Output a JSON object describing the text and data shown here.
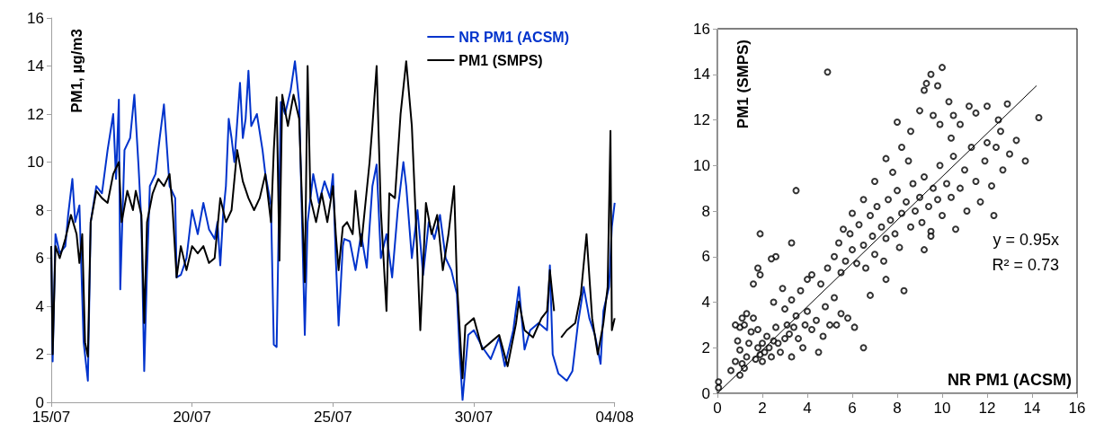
{
  "chart_data": [
    {
      "type": "line",
      "ylabel": "PM1, µg/m3",
      "xlim": [
        "--07-15",
        "--08-04"
      ],
      "xticks": [
        {
          "value": "--07-15",
          "label": "15/07"
        },
        {
          "value": "--07-20",
          "label": "20/07"
        },
        {
          "value": "--07-25",
          "label": "25/07"
        },
        {
          "value": "--07-30",
          "label": "30/07"
        },
        {
          "value": "--08-04",
          "label": "04/08"
        }
      ],
      "ylim": [
        0,
        16
      ],
      "yticks": [
        0,
        2,
        4,
        6,
        8,
        10,
        12,
        14,
        16
      ],
      "grid": false,
      "legend": "top right",
      "marker": "none",
      "line_style": "solid",
      "series": [
        {
          "name": "NR PM1 (ACSM)",
          "color": "#0033cc",
          "x": [
            "--07-15T00:00",
            "--07-15T01:12",
            "--07-15T03:36",
            "--07-15T07:12",
            "--07-15T12:00",
            "--07-15T14:24",
            "--07-15T18:00",
            "--07-15T20:24",
            "--07-16T00:00",
            "--07-16T03:36",
            "--07-16T07:12",
            "--07-16T09:36",
            "--07-16T14:24",
            "--07-16T19:12",
            "--07-17T00:00",
            "--07-17T04:48",
            "--07-17T07:12",
            "--07-17T09:36",
            "--07-17T10:48",
            "--07-17T14:24",
            "--07-17T19:12",
            "--07-17T22:48",
            "--07-18T02:24",
            "--07-18T04:48",
            "--07-18T07:12",
            "--07-18T09:36",
            "--07-18T12:00",
            "--07-18T16:48",
            "--07-18T20:24",
            "--07-19T00:00",
            "--07-19T04:48",
            "--07-19T09:36",
            "--07-19T10:48",
            "--07-19T14:24",
            "--07-19T19:12",
            "--07-20T00:00",
            "--07-20T04:48",
            "--07-20T09:36",
            "--07-20T14:24",
            "--07-20T19:12",
            "--07-20T21:36",
            "--07-21T00:00",
            "--07-21T02:24",
            "--07-21T04:48",
            "--07-21T07:12",
            "--07-21T09:36",
            "--07-21T12:00",
            "--07-21T16:48",
            "--07-21T19:12",
            "--07-21T21:36",
            "--07-22T00:00",
            "--07-22T02:24",
            "--07-22T07:12",
            "--07-22T12:00",
            "--07-22T14:24",
            "--07-22T19:12",
            "--07-22T21:36",
            "--07-23T00:00",
            "--07-23T03:36",
            "--07-23T07:12",
            "--07-23T12:00",
            "--07-23T15:36",
            "--07-23T19:12",
            "--07-24T00:00",
            "--07-24T02:24",
            "--07-24T07:12",
            "--07-24T12:00",
            "--07-24T16:48",
            "--07-24T21:36",
            "--07-25T00:00",
            "--07-25T02:24",
            "--07-25T04:48",
            "--07-25T08:24",
            "--07-25T09:36",
            "--07-25T14:24",
            "--07-25T19:12",
            "--07-26T00:00",
            "--07-26T04:48",
            "--07-26T09:36",
            "--07-26T13:12",
            "--07-26T16:48",
            "--07-26T21:36",
            "--07-27T02:24",
            "--07-27T07:12",
            "--07-27T12:00",
            "--07-27T14:24",
            "--07-27T19:12",
            "--07-28T00:00",
            "--07-28T04:48",
            "--07-28T09:36",
            "--07-28T14:24",
            "--07-28T19:12",
            "--07-29T00:00",
            "--07-29T04:48",
            "--07-29T09:36",
            "--07-29T12:00",
            "--07-29T14:24",
            "--07-29T19:12",
            "--07-30T00:00",
            "--07-30T07:12",
            "--07-30T14:24",
            "--07-30T21:36",
            "--07-31T02:24",
            "--07-31T09:36",
            "--07-31T14:24",
            "--07-31T19:12",
            "--08-01T00:00",
            "--08-01T07:12",
            "--08-01T14:24",
            "--08-01T16:48",
            "--08-01T19:12",
            "--08-02T00:00",
            "--08-02T07:12",
            "--08-02T12:00",
            "--08-02T16:48",
            "--08-02T21:36",
            "--08-03T02:24",
            "--08-03T07:12",
            "--08-03T12:00",
            "--08-03T14:24",
            "--08-03T19:12",
            "--08-03T21:36",
            "--08-04T00:00"
          ],
          "values": [
            6.5,
            1.7,
            7,
            6.2,
            6.5,
            7.8,
            9.3,
            7.5,
            8.2,
            2.5,
            0.9,
            7.5,
            9,
            8.7,
            10.5,
            12,
            9.3,
            12.6,
            4.7,
            10.5,
            11,
            12.8,
            9.8,
            7.5,
            1.3,
            5.5,
            9,
            9.5,
            11,
            12.4,
            9,
            8.5,
            5.2,
            5.3,
            6,
            8,
            7,
            8.3,
            7.2,
            6.8,
            7.5,
            5.7,
            7.8,
            9,
            11.8,
            11,
            10,
            13.3,
            11,
            11.8,
            13.8,
            11.5,
            12,
            10.5,
            9.5,
            8.2,
            2.4,
            2.3,
            12.5,
            12,
            13,
            14.2,
            12.5,
            2.8,
            7.5,
            9.5,
            8.3,
            9.2,
            8.5,
            9.5,
            6,
            3.2,
            6.5,
            6.8,
            6.7,
            5.5,
            7,
            5.6,
            9,
            9.9,
            6,
            7,
            5.2,
            8,
            10,
            9,
            6,
            8,
            5.3,
            7.5,
            6.8,
            7.8,
            6,
            5.5,
            4.5,
            2,
            0.1,
            2.8,
            3,
            2.3,
            1.8,
            2.7,
            1.5,
            3,
            4.8,
            2.2,
            3,
            3.3,
            3,
            5.7,
            2,
            1.2,
            0.9,
            1.3,
            3.3,
            4.8,
            3.5,
            2.8,
            1.6,
            3.8,
            4.8,
            7.3,
            8.3
          ]
        },
        {
          "name": "PM1 (SMPS)",
          "color": "#000000",
          "x": [
            "--07-15T00:00",
            "--07-15T01:12",
            "--07-15T03:36",
            "--07-15T07:12",
            "--07-15T12:00",
            "--07-15T16:48",
            "--07-15T21:36",
            "--07-16T00:00",
            "--07-16T02:24",
            "--07-16T04:48",
            "--07-16T07:12",
            "--07-16T09:36",
            "--07-16T14:24",
            "--07-16T19:12",
            "--07-17T00:00",
            "--07-17T04:48",
            "--07-17T09:36",
            "--07-17T12:00",
            "--07-17T16:48",
            "--07-17T21:36",
            "--07-18T00:00",
            "--07-18T04:48",
            "--07-18T07:12",
            "--07-18T09:36",
            "--07-18T14:24",
            "--07-18T19:12",
            "--07-19T00:00",
            "--07-19T04:48",
            "--07-19T07:12",
            "--07-19T10:48",
            "--07-19T14:24",
            "--07-19T19:12",
            "--07-20T00:00",
            "--07-20T04:48",
            "--07-20T09:36",
            "--07-20T14:24",
            "--07-20T19:12",
            "--07-21T00:00",
            "--07-21T04:48",
            "--07-21T09:36",
            "--07-21T14:24",
            "--07-21T19:12",
            "--07-22T00:00",
            "--07-22T04:48",
            "--07-22T09:36",
            "--07-22T14:24",
            "--07-22T19:12",
            "--07-22T21:36",
            "--07-23T00:00",
            "--07-23T02:24",
            "--07-23T04:48",
            "--07-23T09:36",
            "--07-23T14:24",
            "--07-23T19:12",
            "--07-24T00:00",
            "--07-24T02:24",
            "--07-24T04:48",
            "--07-24T09:36",
            "--07-24T14:24",
            "--07-24T19:12",
            "--07-25T00:00",
            "--07-25T02:24",
            "--07-25T04:48",
            "--07-25T08:24",
            "--07-25T12:00",
            "--07-25T16:48",
            "--07-25T19:12",
            "--07-26T00:00",
            "--07-26T07:12",
            "--07-26T09:36",
            "--07-26T13:12",
            "--07-26T16:48",
            "--07-26T21:36",
            "--07-27T00:00",
            "--07-27T04:48",
            "--07-27T09:36",
            "--07-27T14:24",
            "--07-27T19:12",
            "--07-28T00:00",
            "--07-28T02:24",
            "--07-28T07:12",
            "--07-28T12:00",
            "--07-28T16:48",
            "--07-28T21:36",
            "--07-29T02:24",
            "--07-29T07:12",
            "--07-29T09:36",
            "--07-29T14:24",
            "--07-29T16:48",
            "--07-30T00:00",
            "--07-30T07:12",
            "--07-30T14:24",
            "--07-30T21:36",
            "--07-31T04:48",
            "--07-31T12:00",
            "--07-31T14:24",
            "--07-31T19:12",
            "--08-01T02:24",
            "--08-01T09:36",
            "--08-01T14:24",
            "--08-01T16:48",
            "--08-01T20:24",
            "--08-02T00:00",
            "--08-02T02:24",
            "--08-02T07:12",
            "--08-02T14:24",
            "--08-02T19:12",
            "--08-03T00:00",
            "--08-03T04:48",
            "--08-03T09:36",
            "--08-03T14:24",
            "--08-03T18:00",
            "--08-03T20:24",
            "--08-03T21:36",
            "--08-04T00:00"
          ],
          "values": [
            6.5,
            2,
            6.5,
            6,
            6.8,
            7.8,
            7,
            5.8,
            7,
            2.5,
            1.9,
            7.5,
            8.8,
            8.5,
            8.3,
            9.5,
            10,
            7.5,
            8.8,
            8,
            8.8,
            7.8,
            3.3,
            7.5,
            8.7,
            9.3,
            9,
            9.5,
            8.2,
            5.2,
            6.5,
            5.5,
            6.5,
            6.2,
            6.5,
            5.8,
            6,
            8.5,
            7.5,
            8,
            10.5,
            9.2,
            8.5,
            8,
            8.5,
            9.5,
            7.5,
            10.5,
            12.7,
            5.9,
            12.8,
            11.5,
            12.8,
            11.8,
            5,
            14,
            8.5,
            7.5,
            8.7,
            7.5,
            9,
            7,
            5.5,
            7.3,
            7.5,
            7,
            8.8,
            6.5,
            10,
            11.5,
            14,
            8,
            3.8,
            8.7,
            8.5,
            12,
            14.2,
            11.5,
            6,
            3,
            8.3,
            7,
            7.8,
            5.5,
            7,
            9,
            5,
            1,
            3.2,
            3.5,
            2.2,
            2.5,
            2.8,
            1.5,
            3.3,
            4.2,
            3,
            2.7,
            3.5,
            3.8,
            5.5,
            3.8,
            null,
            2.7,
            3,
            3.3,
            4.5,
            7,
            3.5,
            2,
            3.3,
            4.8,
            11.3,
            3,
            3.5
          ]
        }
      ]
    },
    {
      "type": "scatter",
      "xlabel": "NR PM1 (ACSM)",
      "ylabel": "PM1 (SMPS)",
      "xlim": [
        0,
        16
      ],
      "xticks": [
        0,
        2,
        4,
        6,
        8,
        10,
        12,
        14,
        16
      ],
      "ylim": [
        0,
        16
      ],
      "yticks": [
        0,
        2,
        4,
        6,
        8,
        10,
        12,
        14,
        16
      ],
      "grid": false,
      "legend": false,
      "annotations": [
        "y = 0.95x",
        "R² = 0.73"
      ],
      "series": [
        {
          "color": "#000000",
          "marker": "circle",
          "x": [
            0.05,
            0.05,
            0.8,
            0.6,
            1.0,
            1.1,
            1.2,
            1.3,
            1.0,
            0.9,
            1.0,
            0.8,
            1.1,
            1.2,
            1.3,
            1.5,
            1.6,
            1.8,
            1.4,
            1.7,
            1.8,
            1.9,
            2.0,
            2.1,
            2.2,
            2.0,
            2.3,
            2.4,
            2.5,
            2.6,
            2.7,
            2.8,
            3.0,
            3.1,
            3.2,
            3.3,
            3.4,
            3.5,
            3.6,
            3.8,
            3.9,
            4.0,
            4.2,
            4.4,
            4.5,
            4.7,
            4.8,
            5.0,
            5.2,
            5.5,
            5.8,
            6.1,
            6.5,
            2.5,
            2.9,
            3.3,
            3.7,
            3.0,
            1.9,
            1.8,
            1.6,
            2.6,
            3.3,
            3.5,
            1.9,
            2.4,
            4.2,
            4.6,
            4.0,
            4.9,
            5.2,
            5.5,
            5.4,
            5.7,
            5.9,
            6.0,
            6.2,
            6.3,
            6.5,
            6.6,
            6.8,
            6.9,
            7.0,
            7.1,
            7.3,
            7.4,
            7.5,
            7.6,
            7.7,
            7.9,
            8.0,
            8.1,
            8.2,
            8.3,
            8.4,
            8.6,
            8.7,
            8.8,
            9.0,
            9.1,
            9.2,
            9.4,
            9.5,
            9.6,
            9.8,
            9.9,
            10.0,
            10.2,
            10.4,
            10.5,
            10.6,
            10.8,
            11.0,
            11.1,
            11.3,
            11.5,
            11.7,
            11.9,
            12.0,
            12.2,
            12.3,
            12.4,
            12.6,
            12.7,
            11.5,
            12.0,
            12.5,
            12.9,
            13.3,
            13.0,
            13.7,
            14.3,
            10.8,
            11.2,
            10.5,
            6.0,
            6.5,
            5.6,
            7.0,
            7.5,
            7.8,
            8.2,
            8.6,
            8.0,
            9.0,
            9.2,
            9.3,
            9.5,
            9.8,
            10.0,
            9.6,
            10.3,
            9.9,
            10.4,
            8.5,
            7.5,
            6.8,
            5.3,
            9.2,
            9.5,
            4.9
          ],
          "values": [
            0.5,
            0.25,
            1.4,
            1.0,
            0.8,
            1.3,
            1.1,
            1.6,
            1.9,
            2.3,
            2.9,
            3.0,
            3.3,
            3.0,
            3.5,
            2.7,
            3.3,
            2.8,
            2.2,
            1.5,
            2.0,
            1.7,
            2.2,
            1.8,
            2.5,
            1.4,
            2.0,
            1.6,
            2.3,
            2.9,
            2.2,
            1.8,
            2.4,
            3.0,
            2.6,
            1.6,
            2.9,
            3.4,
            2.4,
            2.0,
            3.0,
            3.6,
            2.8,
            3.2,
            1.8,
            2.5,
            3.8,
            3.0,
            4.2,
            3.5,
            3.3,
            2.9,
            2.0,
            4.0,
            4.6,
            4.1,
            4.5,
            3.7,
            5.2,
            5.5,
            4.8,
            6.0,
            6.6,
            8.9,
            7.0,
            5.9,
            5.2,
            4.8,
            5.0,
            5.5,
            6.0,
            5.3,
            6.6,
            5.8,
            7.0,
            6.3,
            5.7,
            7.4,
            6.5,
            5.5,
            7.8,
            6.9,
            6.1,
            8.2,
            7.3,
            5.8,
            6.8,
            8.5,
            7.6,
            7.0,
            8.9,
            6.4,
            7.9,
            4.5,
            8.4,
            7.3,
            9.2,
            8.0,
            8.6,
            7.5,
            9.5,
            8.2,
            7.1,
            9.0,
            8.5,
            10.0,
            7.8,
            9.2,
            8.6,
            10.4,
            7.2,
            9.0,
            9.8,
            8.0,
            10.8,
            9.3,
            8.4,
            10.2,
            11.0,
            9.1,
            7.8,
            10.8,
            11.5,
            9.8,
            12.3,
            12.6,
            12.0,
            12.7,
            11.1,
            10.5,
            10.2,
            12.1,
            11.8,
            12.6,
            12.2,
            7.9,
            8.5,
            7.2,
            9.3,
            10.3,
            9.7,
            10.8,
            11.5,
            11.9,
            12.4,
            13.3,
            13.6,
            14.0,
            13.5,
            14.3,
            12.2,
            12.8,
            11.8,
            11.2,
            10.2,
            5.0,
            4.3,
            3.0,
            6.3,
            6.9,
            14.1
          ]
        },
        {
          "type": "line",
          "color": "#000000",
          "marker": "none",
          "x": [
            0,
            14.2
          ],
          "values": [
            0,
            13.5
          ]
        }
      ]
    }
  ]
}
